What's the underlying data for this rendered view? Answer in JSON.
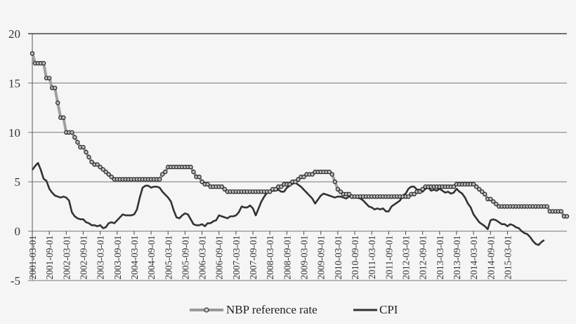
{
  "chart_data": {
    "type": "line",
    "title": "",
    "xlabel": "",
    "ylabel": "",
    "ylim": [
      -5,
      20
    ],
    "yticks": [
      -5,
      0,
      5,
      10,
      15,
      20
    ],
    "grid": "horizontal",
    "legend_position": "bottom",
    "x_start": "2001-03",
    "x_end": "2015-03",
    "xtick_labels": [
      "2001-03-01",
      "2001-09-01",
      "2002-03-01",
      "2002-09-01",
      "2003-03-01",
      "2003-09-01",
      "2004-03-01",
      "2004-09-01",
      "2005-03-01",
      "2005-09-01",
      "2006-03-01",
      "2006-09-01",
      "2007-03-01",
      "2007-09-01",
      "2008-03-01",
      "2008-09-01",
      "2009-03-01",
      "2009-09-01",
      "2010-03-01",
      "2010-09-01",
      "2011-03-01",
      "2011-09-01",
      "2012-03-01",
      "2012-09-01",
      "2013-03-01",
      "2013-09-01",
      "2014-03-01",
      "2014-09-01",
      "2015-03-01"
    ],
    "series": [
      {
        "name": "NBP reference rate",
        "color": "#999999",
        "marker": "circle",
        "values": [
          18,
          17,
          17,
          17,
          17,
          15.5,
          15.5,
          14.5,
          14.5,
          13,
          11.5,
          11.5,
          10,
          10,
          10,
          9.5,
          9,
          8.5,
          8.5,
          8,
          7.5,
          7,
          6.75,
          6.75,
          6.5,
          6.25,
          6,
          5.75,
          5.5,
          5.25,
          5.25,
          5.25,
          5.25,
          5.25,
          5.25,
          5.25,
          5.25,
          5.25,
          5.25,
          5.25,
          5.25,
          5.25,
          5.25,
          5.25,
          5.25,
          5.25,
          5.75,
          6,
          6.5,
          6.5,
          6.5,
          6.5,
          6.5,
          6.5,
          6.5,
          6.5,
          6.5,
          6,
          5.5,
          5.5,
          5,
          4.75,
          4.75,
          4.5,
          4.5,
          4.5,
          4.5,
          4.5,
          4.25,
          4,
          4,
          4,
          4,
          4,
          4,
          4,
          4,
          4,
          4,
          4,
          4,
          4,
          4,
          4,
          4,
          4.25,
          4.25,
          4.5,
          4.5,
          4.75,
          4.75,
          4.75,
          5,
          5,
          5.25,
          5.5,
          5.5,
          5.75,
          5.75,
          5.75,
          6,
          6,
          6,
          6,
          6,
          6,
          5.75,
          5,
          4.25,
          4,
          3.75,
          3.75,
          3.75,
          3.5,
          3.5,
          3.5,
          3.5,
          3.5,
          3.5,
          3.5,
          3.5,
          3.5,
          3.5,
          3.5,
          3.5,
          3.5,
          3.5,
          3.5,
          3.5,
          3.5,
          3.5,
          3.5,
          3.5,
          3.5,
          3.75,
          3.75,
          4,
          4,
          4.25,
          4.5,
          4.5,
          4.5,
          4.5,
          4.5,
          4.5,
          4.5,
          4.5,
          4.5,
          4.5,
          4.5,
          4.75,
          4.75,
          4.75,
          4.75,
          4.75,
          4.75,
          4.75,
          4.5,
          4.25,
          4,
          3.75,
          3.25,
          3.25,
          3,
          2.75,
          2.5,
          2.5,
          2.5,
          2.5,
          2.5,
          2.5,
          2.5,
          2.5,
          2.5,
          2.5,
          2.5,
          2.5,
          2.5,
          2.5,
          2.5,
          2.5,
          2.5,
          2.5,
          2,
          2,
          2,
          2,
          2,
          1.5,
          1.5
        ]
      },
      {
        "name": "CPI",
        "color": "#333333",
        "marker": "none",
        "values": [
          6.2,
          6.6,
          6.9,
          6.2,
          5.3,
          5.1,
          4.3,
          3.9,
          3.6,
          3.5,
          3.4,
          3.5,
          3.4,
          3.1,
          1.9,
          1.5,
          1.3,
          1.2,
          1.2,
          0.9,
          0.8,
          0.6,
          0.6,
          0.5,
          0.6,
          0.3,
          0.4,
          0.8,
          0.9,
          0.8,
          1.1,
          1.4,
          1.7,
          1.6,
          1.6,
          1.6,
          1.7,
          2.2,
          3.4,
          4.4,
          4.6,
          4.6,
          4.4,
          4.5,
          4.5,
          4.4,
          4,
          3.7,
          3.4,
          3,
          2.1,
          1.4,
          1.3,
          1.6,
          1.8,
          1.7,
          1.2,
          0.7,
          0.6,
          0.6,
          0.7,
          0.5,
          0.8,
          0.8,
          1,
          1.1,
          1.6,
          1.5,
          1.4,
          1.3,
          1.5,
          1.5,
          1.6,
          1.9,
          2.5,
          2.4,
          2.4,
          2.6,
          2.3,
          1.6,
          2.3,
          3,
          3.5,
          3.9,
          4,
          4.1,
          4.1,
          4.2,
          4,
          4,
          4.4,
          4.6,
          4.8,
          4.9,
          4.7,
          4.5,
          4.2,
          3.9,
          3.6,
          3.3,
          2.8,
          3.2,
          3.6,
          3.8,
          3.7,
          3.6,
          3.5,
          3.4,
          3.5,
          3.5,
          3.4,
          3.3,
          3.5,
          3.6,
          3.6,
          3.4,
          3.3,
          3.1,
          2.8,
          2.5,
          2.4,
          2.2,
          2.3,
          2.2,
          2.3,
          2,
          2,
          2.5,
          2.7,
          2.9,
          3.1,
          3.6,
          3.8,
          4.3,
          4.5,
          4.5,
          4.2,
          4.2,
          4,
          4.3,
          4.4,
          4.1,
          4.2,
          4.1,
          4.3,
          4.1,
          3.9,
          4,
          3.8,
          3.9,
          4.3,
          4,
          3.8,
          3.4,
          2.8,
          2.4,
          1.7,
          1.3,
          0.9,
          0.7,
          0.5,
          0.2,
          1.1,
          1.2,
          1.1,
          0.9,
          0.7,
          0.7,
          0.5,
          0.7,
          0.6,
          0.4,
          0.3,
          0,
          -0.2,
          -0.3,
          -0.6,
          -1,
          -1.3,
          -1.4,
          -1.1,
          -0.9
        ]
      }
    ]
  },
  "legend": {
    "items": [
      {
        "label": "NBP reference rate"
      },
      {
        "label": "CPI"
      }
    ]
  }
}
